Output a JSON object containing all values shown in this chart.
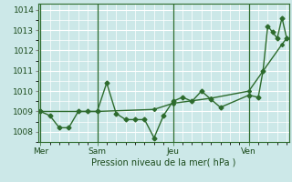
{
  "bg_color": "#cce8e8",
  "plot_bg_color": "#cce8e8",
  "grid_color": "#ffffff",
  "line_color": "#2d6b2d",
  "xlabel": "Pression niveau de la mer( hPa )",
  "ylim": [
    1007.5,
    1014.3
  ],
  "yticks": [
    1008,
    1009,
    1010,
    1011,
    1012,
    1013,
    1014
  ],
  "day_labels": [
    "Mer",
    "Sam",
    "Jeu",
    "Ven"
  ],
  "day_positions": [
    0,
    48,
    112,
    176
  ],
  "vline_positions": [
    0,
    48,
    112,
    176
  ],
  "xlim": [
    -2,
    210
  ],
  "x_main": [
    0,
    8,
    16,
    24,
    32,
    40,
    48,
    56,
    64,
    72,
    80,
    88,
    96,
    104,
    112,
    120,
    128,
    136,
    144,
    152,
    176,
    184,
    188,
    192,
    196,
    200,
    204,
    208
  ],
  "y_main": [
    1009.0,
    1008.8,
    1008.2,
    1008.2,
    1009.0,
    1009.0,
    1009.0,
    1010.4,
    1008.9,
    1008.6,
    1008.6,
    1008.6,
    1007.7,
    1008.8,
    1009.5,
    1009.7,
    1009.5,
    1010.0,
    1009.6,
    1009.2,
    1009.8,
    1009.7,
    1011.0,
    1013.2,
    1012.9,
    1012.6,
    1013.6,
    1012.6
  ],
  "x_trend": [
    0,
    48,
    96,
    112,
    144,
    176,
    204,
    208
  ],
  "y_trend": [
    1009.0,
    1009.0,
    1009.1,
    1009.4,
    1009.65,
    1010.0,
    1012.3,
    1012.6
  ]
}
